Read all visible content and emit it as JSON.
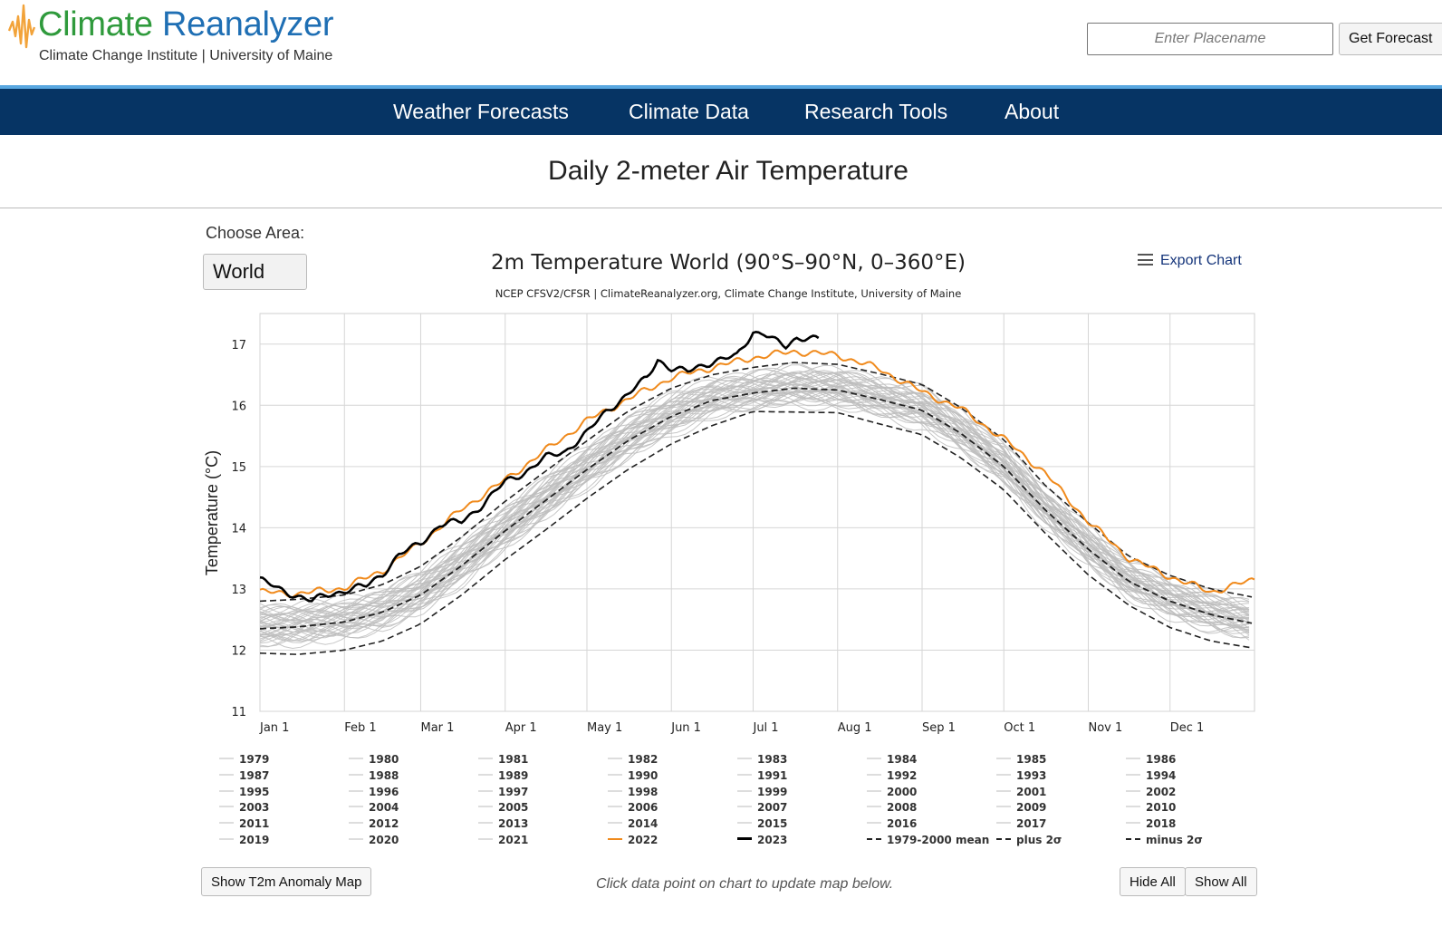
{
  "header": {
    "brand_word1": "Climate",
    "brand_word2": "Reanalyzer",
    "subtitle": "Climate Change Institute | University of Maine",
    "search_placeholder": "Enter Placename",
    "forecast_button": "Get Forecast",
    "colors": {
      "green": "#2f9a3c",
      "blue": "#1f6fb4",
      "logo_orange": "#f2a33a"
    }
  },
  "nav": {
    "items": [
      {
        "label": "Weather Forecasts"
      },
      {
        "label": "Climate Data"
      },
      {
        "label": "Research Tools"
      },
      {
        "label": "About"
      }
    ],
    "background": "#063464"
  },
  "page": {
    "title": "Daily 2-meter Air Temperature",
    "area_label": "Choose Area:",
    "area_value": "World",
    "export_label": "Export Chart",
    "anomaly_button": "Show T2m Anomaly Map",
    "hint": "Click data point on chart to update map below.",
    "hide_all": "Hide All",
    "show_all": "Show All"
  },
  "chart_data": {
    "type": "line",
    "title": "2m Temperature World (90°S–90°N, 0–360°E)",
    "subtitle": "NCEP CFSV2/CFSR | ClimateReanalyzer.org, Climate Change Institute, University of Maine",
    "ylabel": "Temperature (°C)",
    "xlabel": "",
    "ylim": [
      11,
      17.5
    ],
    "yticks": [
      11,
      12,
      13,
      14,
      15,
      16,
      17
    ],
    "xlim": [
      1,
      366
    ],
    "xticks": [
      {
        "label": "Jan 1",
        "day": 1
      },
      {
        "label": "Feb 1",
        "day": 32
      },
      {
        "label": "Mar 1",
        "day": 60
      },
      {
        "label": "Apr 1",
        "day": 91
      },
      {
        "label": "May 1",
        "day": 121
      },
      {
        "label": "Jun 1",
        "day": 152
      },
      {
        "label": "Jul 1",
        "day": 182
      },
      {
        "label": "Aug 1",
        "day": 213
      },
      {
        "label": "Sep 1",
        "day": 244
      },
      {
        "label": "Oct 1",
        "day": 274
      },
      {
        "label": "Nov 1",
        "day": 305
      },
      {
        "label": "Dec 1",
        "day": 335
      }
    ],
    "grid": true,
    "colors": {
      "grey_years": "#bdbdbd",
      "y2022": "#f08a1c",
      "y2023": "#000000",
      "stats": "#222222"
    },
    "series": [
      {
        "name": "1979-2000 mean",
        "style": "dashed",
        "x": [
          1,
          15,
          32,
          46,
          60,
          75,
          91,
          106,
          121,
          136,
          152,
          167,
          182,
          197,
          213,
          228,
          244,
          258,
          274,
          289,
          305,
          320,
          335,
          350,
          366
        ],
        "values": [
          12.35,
          12.38,
          12.46,
          12.62,
          12.9,
          13.38,
          13.95,
          14.45,
          14.95,
          15.42,
          15.82,
          16.08,
          16.2,
          16.28,
          16.25,
          16.1,
          15.92,
          15.55,
          15.0,
          14.3,
          13.65,
          13.12,
          12.8,
          12.58,
          12.43
        ]
      },
      {
        "name": "plus 2σ",
        "style": "dashdot",
        "x": [
          1,
          15,
          32,
          46,
          60,
          75,
          91,
          106,
          121,
          136,
          152,
          167,
          182,
          197,
          213,
          228,
          244,
          258,
          274,
          289,
          305,
          320,
          335,
          350,
          366
        ],
        "values": [
          12.8,
          12.83,
          12.9,
          13.07,
          13.37,
          13.85,
          14.43,
          14.93,
          15.42,
          15.9,
          16.28,
          16.5,
          16.62,
          16.7,
          16.67,
          16.52,
          16.34,
          15.97,
          15.44,
          14.7,
          14.08,
          13.53,
          13.22,
          13.0,
          12.86
        ]
      },
      {
        "name": "minus 2σ",
        "style": "dashdot",
        "x": [
          1,
          15,
          32,
          46,
          60,
          75,
          91,
          106,
          121,
          136,
          152,
          167,
          182,
          197,
          213,
          228,
          244,
          258,
          274,
          289,
          305,
          320,
          335,
          350,
          366
        ],
        "values": [
          11.95,
          11.93,
          12.0,
          12.15,
          12.43,
          12.9,
          13.48,
          13.97,
          14.48,
          14.95,
          15.37,
          15.67,
          15.9,
          15.89,
          15.88,
          15.7,
          15.52,
          15.15,
          14.62,
          13.92,
          13.23,
          12.73,
          12.37,
          12.15,
          12.03
        ]
      },
      {
        "name": "2022",
        "style": "solid",
        "x": [
          1,
          15,
          32,
          46,
          60,
          75,
          91,
          106,
          121,
          136,
          152,
          167,
          182,
          197,
          213,
          228,
          244,
          258,
          274,
          289,
          305,
          320,
          335,
          350,
          366
        ],
        "values": [
          12.95,
          12.92,
          13.02,
          13.3,
          13.75,
          14.3,
          14.78,
          15.27,
          15.75,
          16.1,
          16.45,
          16.62,
          16.78,
          16.88,
          16.82,
          16.6,
          16.22,
          15.95,
          15.45,
          14.9,
          14.1,
          13.5,
          13.2,
          12.95,
          13.15
        ]
      },
      {
        "name": "2023",
        "style": "solid",
        "x": [
          1,
          8,
          15,
          20,
          25,
          32,
          40,
          46,
          52,
          60,
          67,
          75,
          82,
          91,
          98,
          106,
          113,
          121,
          128,
          136,
          143,
          147,
          152,
          158,
          164,
          170,
          176,
          182,
          186,
          190,
          194,
          198,
          202,
          206
        ],
        "values": [
          13.15,
          13.0,
          12.88,
          12.8,
          12.9,
          12.97,
          13.05,
          13.25,
          13.55,
          13.75,
          14.05,
          14.1,
          14.35,
          14.75,
          14.9,
          15.15,
          15.25,
          15.55,
          15.9,
          16.18,
          16.45,
          16.75,
          16.6,
          16.55,
          16.67,
          16.75,
          16.8,
          17.2,
          17.18,
          17.05,
          16.95,
          17.1,
          17.12,
          17.08
        ]
      }
    ],
    "legend_items": [
      {
        "label": "1979",
        "kind": "year"
      },
      {
        "label": "1980",
        "kind": "year"
      },
      {
        "label": "1981",
        "kind": "year"
      },
      {
        "label": "1982",
        "kind": "year"
      },
      {
        "label": "1983",
        "kind": "year"
      },
      {
        "label": "1984",
        "kind": "year"
      },
      {
        "label": "1985",
        "kind": "year"
      },
      {
        "label": "1986",
        "kind": "year"
      },
      {
        "label": "1987",
        "kind": "year"
      },
      {
        "label": "1988",
        "kind": "year"
      },
      {
        "label": "1989",
        "kind": "year"
      },
      {
        "label": "1990",
        "kind": "year"
      },
      {
        "label": "1991",
        "kind": "year"
      },
      {
        "label": "1992",
        "kind": "year"
      },
      {
        "label": "1993",
        "kind": "year"
      },
      {
        "label": "1994",
        "kind": "year"
      },
      {
        "label": "1995",
        "kind": "year"
      },
      {
        "label": "1996",
        "kind": "year"
      },
      {
        "label": "1997",
        "kind": "year"
      },
      {
        "label": "1998",
        "kind": "year"
      },
      {
        "label": "1999",
        "kind": "year"
      },
      {
        "label": "2000",
        "kind": "year"
      },
      {
        "label": "2001",
        "kind": "year"
      },
      {
        "label": "2002",
        "kind": "year"
      },
      {
        "label": "2003",
        "kind": "year"
      },
      {
        "label": "2004",
        "kind": "year"
      },
      {
        "label": "2005",
        "kind": "year"
      },
      {
        "label": "2006",
        "kind": "year"
      },
      {
        "label": "2007",
        "kind": "year"
      },
      {
        "label": "2008",
        "kind": "year"
      },
      {
        "label": "2009",
        "kind": "year"
      },
      {
        "label": "2010",
        "kind": "year"
      },
      {
        "label": "2011",
        "kind": "year"
      },
      {
        "label": "2012",
        "kind": "year"
      },
      {
        "label": "2013",
        "kind": "year"
      },
      {
        "label": "2014",
        "kind": "year"
      },
      {
        "label": "2015",
        "kind": "year"
      },
      {
        "label": "2016",
        "kind": "year"
      },
      {
        "label": "2017",
        "kind": "year"
      },
      {
        "label": "2018",
        "kind": "year"
      },
      {
        "label": "2019",
        "kind": "year"
      },
      {
        "label": "2020",
        "kind": "year"
      },
      {
        "label": "2021",
        "kind": "year"
      },
      {
        "label": "2022",
        "kind": "y2022"
      },
      {
        "label": "2023",
        "kind": "y2023"
      },
      {
        "label": "1979-2000 mean",
        "kind": "mean"
      },
      {
        "label": "plus 2σ",
        "kind": "sigma"
      },
      {
        "label": "minus 2σ",
        "kind": "sigma"
      }
    ]
  }
}
